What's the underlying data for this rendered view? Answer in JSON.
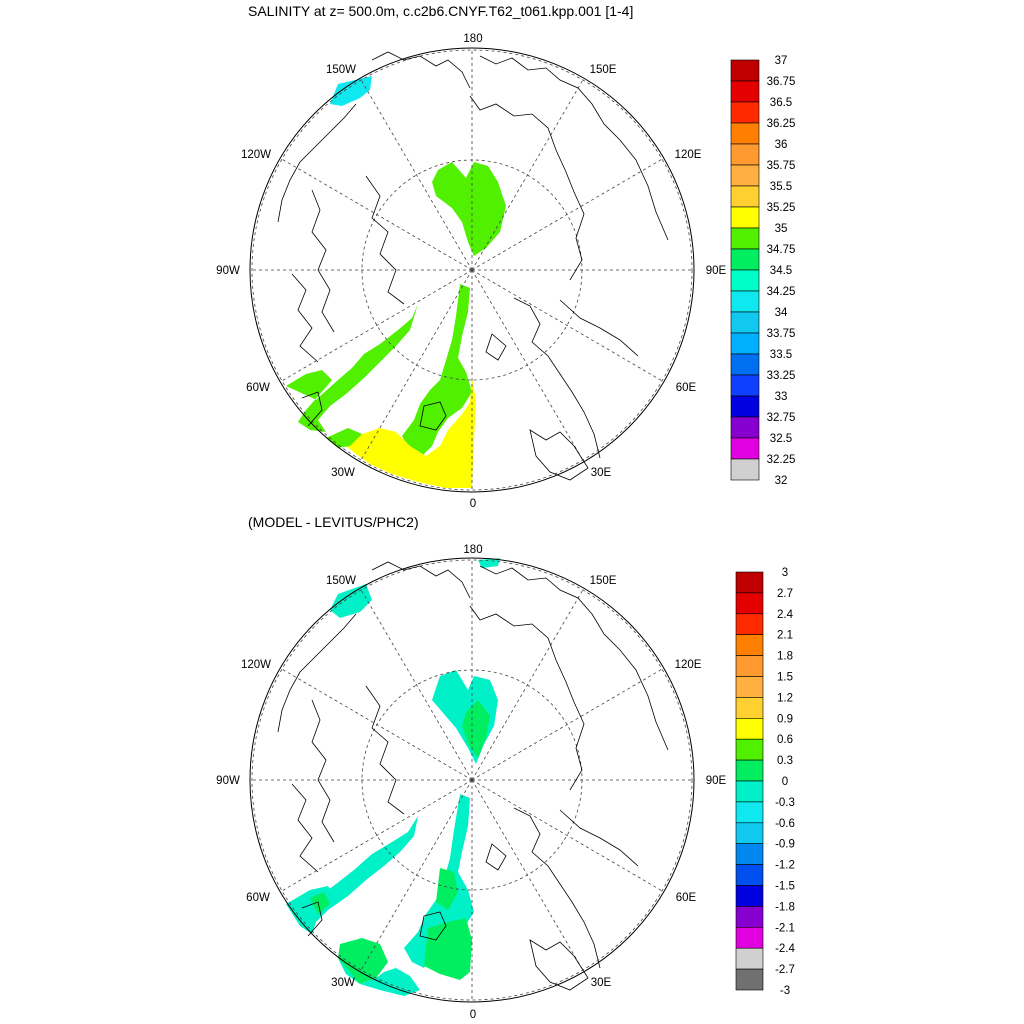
{
  "panels": [
    {
      "title": "SALINITY at z= 500.0m, c.c2b6.CNYF.T62_t061.kpp.001 [1-4]",
      "lon_labels": [
        "180",
        "150E",
        "120E",
        "90E",
        "60E",
        "30E",
        "0",
        "30W",
        "60W",
        "90W",
        "120W",
        "150W"
      ],
      "colorbar": {
        "labels": [
          "37",
          "36.75",
          "36.5",
          "36.25",
          "36",
          "35.75",
          "35.5",
          "35.25",
          "35",
          "34.75",
          "34.5",
          "34.25",
          "34",
          "33.75",
          "33.5",
          "33.25",
          "33",
          "32.75",
          "32.5",
          "32.25",
          "32"
        ],
        "colors": [
          "#c00000",
          "#e40000",
          "#ff2a00",
          "#ff8000",
          "#ff9a30",
          "#ffb040",
          "#ffd030",
          "#ffff00",
          "#50f000",
          "#00ee60",
          "#00ffc8",
          "#10e8f0",
          "#10c8f0",
          "#00b0ff",
          "#0070f0",
          "#1040ff",
          "#0000e0",
          "#8800d0",
          "#e000e0",
          "#d0d0d0"
        ]
      }
    },
    {
      "title": "(MODEL - LEVITUS/PHC2)",
      "lon_labels": [
        "180",
        "150E",
        "120E",
        "90E",
        "60E",
        "30E",
        "0",
        "30W",
        "60W",
        "90W",
        "120W",
        "150W"
      ],
      "colorbar": {
        "labels": [
          "3",
          "2.7",
          "2.4",
          "2.1",
          "1.8",
          "1.5",
          "1.2",
          "0.9",
          "0.6",
          "0.3",
          "0",
          "-0.3",
          "-0.6",
          "-0.9",
          "-1.2",
          "-1.5",
          "-1.8",
          "-2.1",
          "-2.4",
          "-2.7",
          "-3"
        ],
        "colors": [
          "#c00000",
          "#e40000",
          "#ff2a00",
          "#ff8000",
          "#ff9a30",
          "#ffb040",
          "#ffd030",
          "#ffff00",
          "#50f000",
          "#00ee60",
          "#00f0c8",
          "#10e8f0",
          "#10c8f0",
          "#0088f0",
          "#0050f0",
          "#0000e0",
          "#8800d0",
          "#e000e0",
          "#d0d0d0",
          "#707070"
        ]
      }
    }
  ]
}
